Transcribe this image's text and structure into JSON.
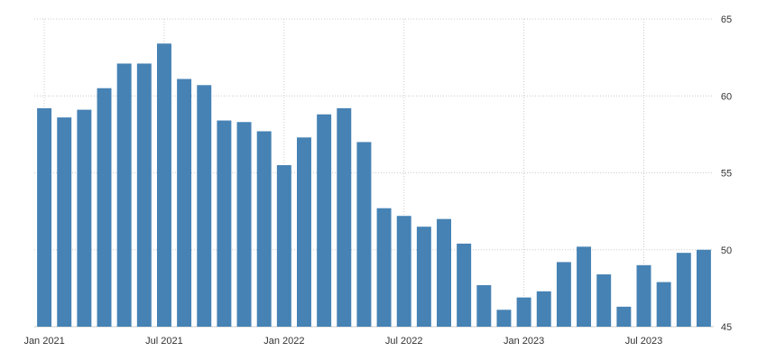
{
  "chart_data": {
    "type": "bar",
    "categories": [
      "2021-01",
      "2021-02",
      "2021-03",
      "2021-04",
      "2021-05",
      "2021-06",
      "2021-07",
      "2021-08",
      "2021-09",
      "2021-10",
      "2021-11",
      "2021-12",
      "2022-01",
      "2022-02",
      "2022-03",
      "2022-04",
      "2022-05",
      "2022-06",
      "2022-07",
      "2022-08",
      "2022-09",
      "2022-10",
      "2022-11",
      "2022-12",
      "2023-01",
      "2023-02",
      "2023-03",
      "2023-04",
      "2023-05",
      "2023-06",
      "2023-07",
      "2023-08",
      "2023-09",
      "2023-10"
    ],
    "values": [
      59.2,
      58.6,
      59.1,
      60.5,
      62.1,
      62.1,
      63.4,
      61.1,
      60.7,
      58.4,
      58.3,
      57.7,
      55.5,
      57.3,
      58.8,
      59.2,
      57.0,
      52.7,
      52.2,
      51.5,
      52.0,
      50.4,
      47.7,
      46.1,
      46.9,
      47.3,
      49.2,
      50.2,
      48.4,
      46.3,
      49.0,
      47.9,
      49.8,
      50.0
    ],
    "x_tick_labels": [
      {
        "category": "2021-01",
        "label": "Jan 2021"
      },
      {
        "category": "2021-07",
        "label": "Jul 2021"
      },
      {
        "category": "2022-01",
        "label": "Jan 2022"
      },
      {
        "category": "2022-07",
        "label": "Jul 2022"
      },
      {
        "category": "2023-01",
        "label": "Jan 2023"
      },
      {
        "category": "2023-07",
        "label": "Jul 2023"
      }
    ],
    "y_ticks": [
      45,
      50,
      55,
      60,
      65
    ],
    "ylim": [
      45,
      65
    ],
    "y_axis_side": "right",
    "grid": true,
    "bar_color": "#4682b4",
    "grid_color": "#cccccc",
    "title": "",
    "xlabel": "",
    "ylabel": ""
  }
}
